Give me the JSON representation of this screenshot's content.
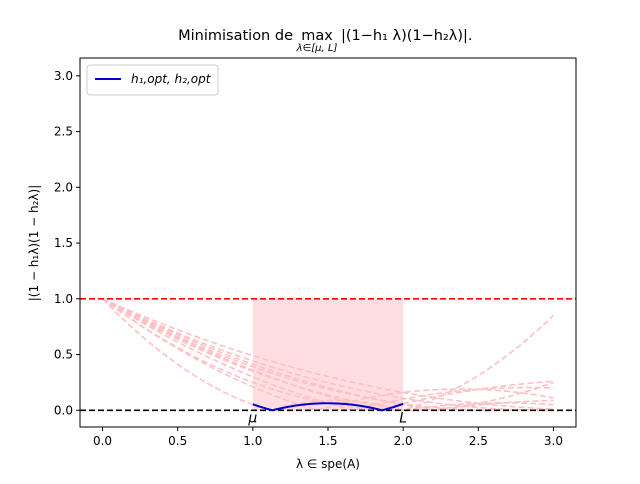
{
  "chart_data": {
    "type": "line",
    "title_prefix": "Minimisation de ",
    "title_max": "max",
    "title_sub": "λ∈[μ, L]",
    "title_body": "|(1−h₁ λ)(1−h₂λ)|.",
    "xlabel": "λ ∈ spe(A)",
    "ylabel": "|(1 − h₁λ)(1 − h₂λ)|",
    "xlim": [
      -0.15,
      3.15
    ],
    "ylim": [
      -0.15,
      3.16
    ],
    "x_ticks": [
      0.0,
      0.5,
      1.0,
      1.5,
      2.0,
      2.5,
      3.0
    ],
    "x_tick_labels": [
      "0.0",
      "0.5",
      "1.0",
      "1.5",
      "2.0",
      "2.5",
      "3.0"
    ],
    "y_ticks": [
      0.0,
      0.5,
      1.0,
      1.5,
      2.0,
      2.5,
      3.0
    ],
    "y_tick_labels": [
      "0.0",
      "0.5",
      "1.0",
      "1.5",
      "2.0",
      "2.5",
      "3.0"
    ],
    "mu": 1.0,
    "L": 2.0,
    "mu_label": "μ",
    "L_label": "L",
    "hlines": [
      {
        "y": 1.0,
        "color": "#ff0000",
        "style": "dashed"
      },
      {
        "y": 0.0,
        "color": "#000000",
        "style": "dashed"
      }
    ],
    "shaded_region": {
      "x": [
        1.0,
        2.0
      ],
      "y": [
        0.0,
        1.0
      ],
      "color": "#ffdde1"
    },
    "optimal": {
      "name": "h₁,opt, h₂,opt",
      "h1": 0.8842,
      "h2": 0.5377,
      "x_range": [
        1.0,
        2.0
      ],
      "color": "#0000cc"
    },
    "trial_curves": {
      "color": "#ffc0c6",
      "style": "dashed",
      "x_range": [
        0.0,
        3.0
      ],
      "pairs": [
        [
          0.5,
          0.5
        ],
        [
          0.7,
          0.3
        ],
        [
          0.6,
          0.25
        ],
        [
          0.5,
          0.3
        ],
        [
          0.4,
          0.35
        ],
        [
          0.55,
          0.2
        ],
        [
          0.45,
          0.25
        ],
        [
          0.9,
          0.5
        ],
        [
          0.3,
          0.3
        ],
        [
          0.35,
          0.32
        ]
      ]
    },
    "legend": {
      "position": "upper-left",
      "entries": [
        "h₁,opt, h₂,opt"
      ]
    }
  }
}
